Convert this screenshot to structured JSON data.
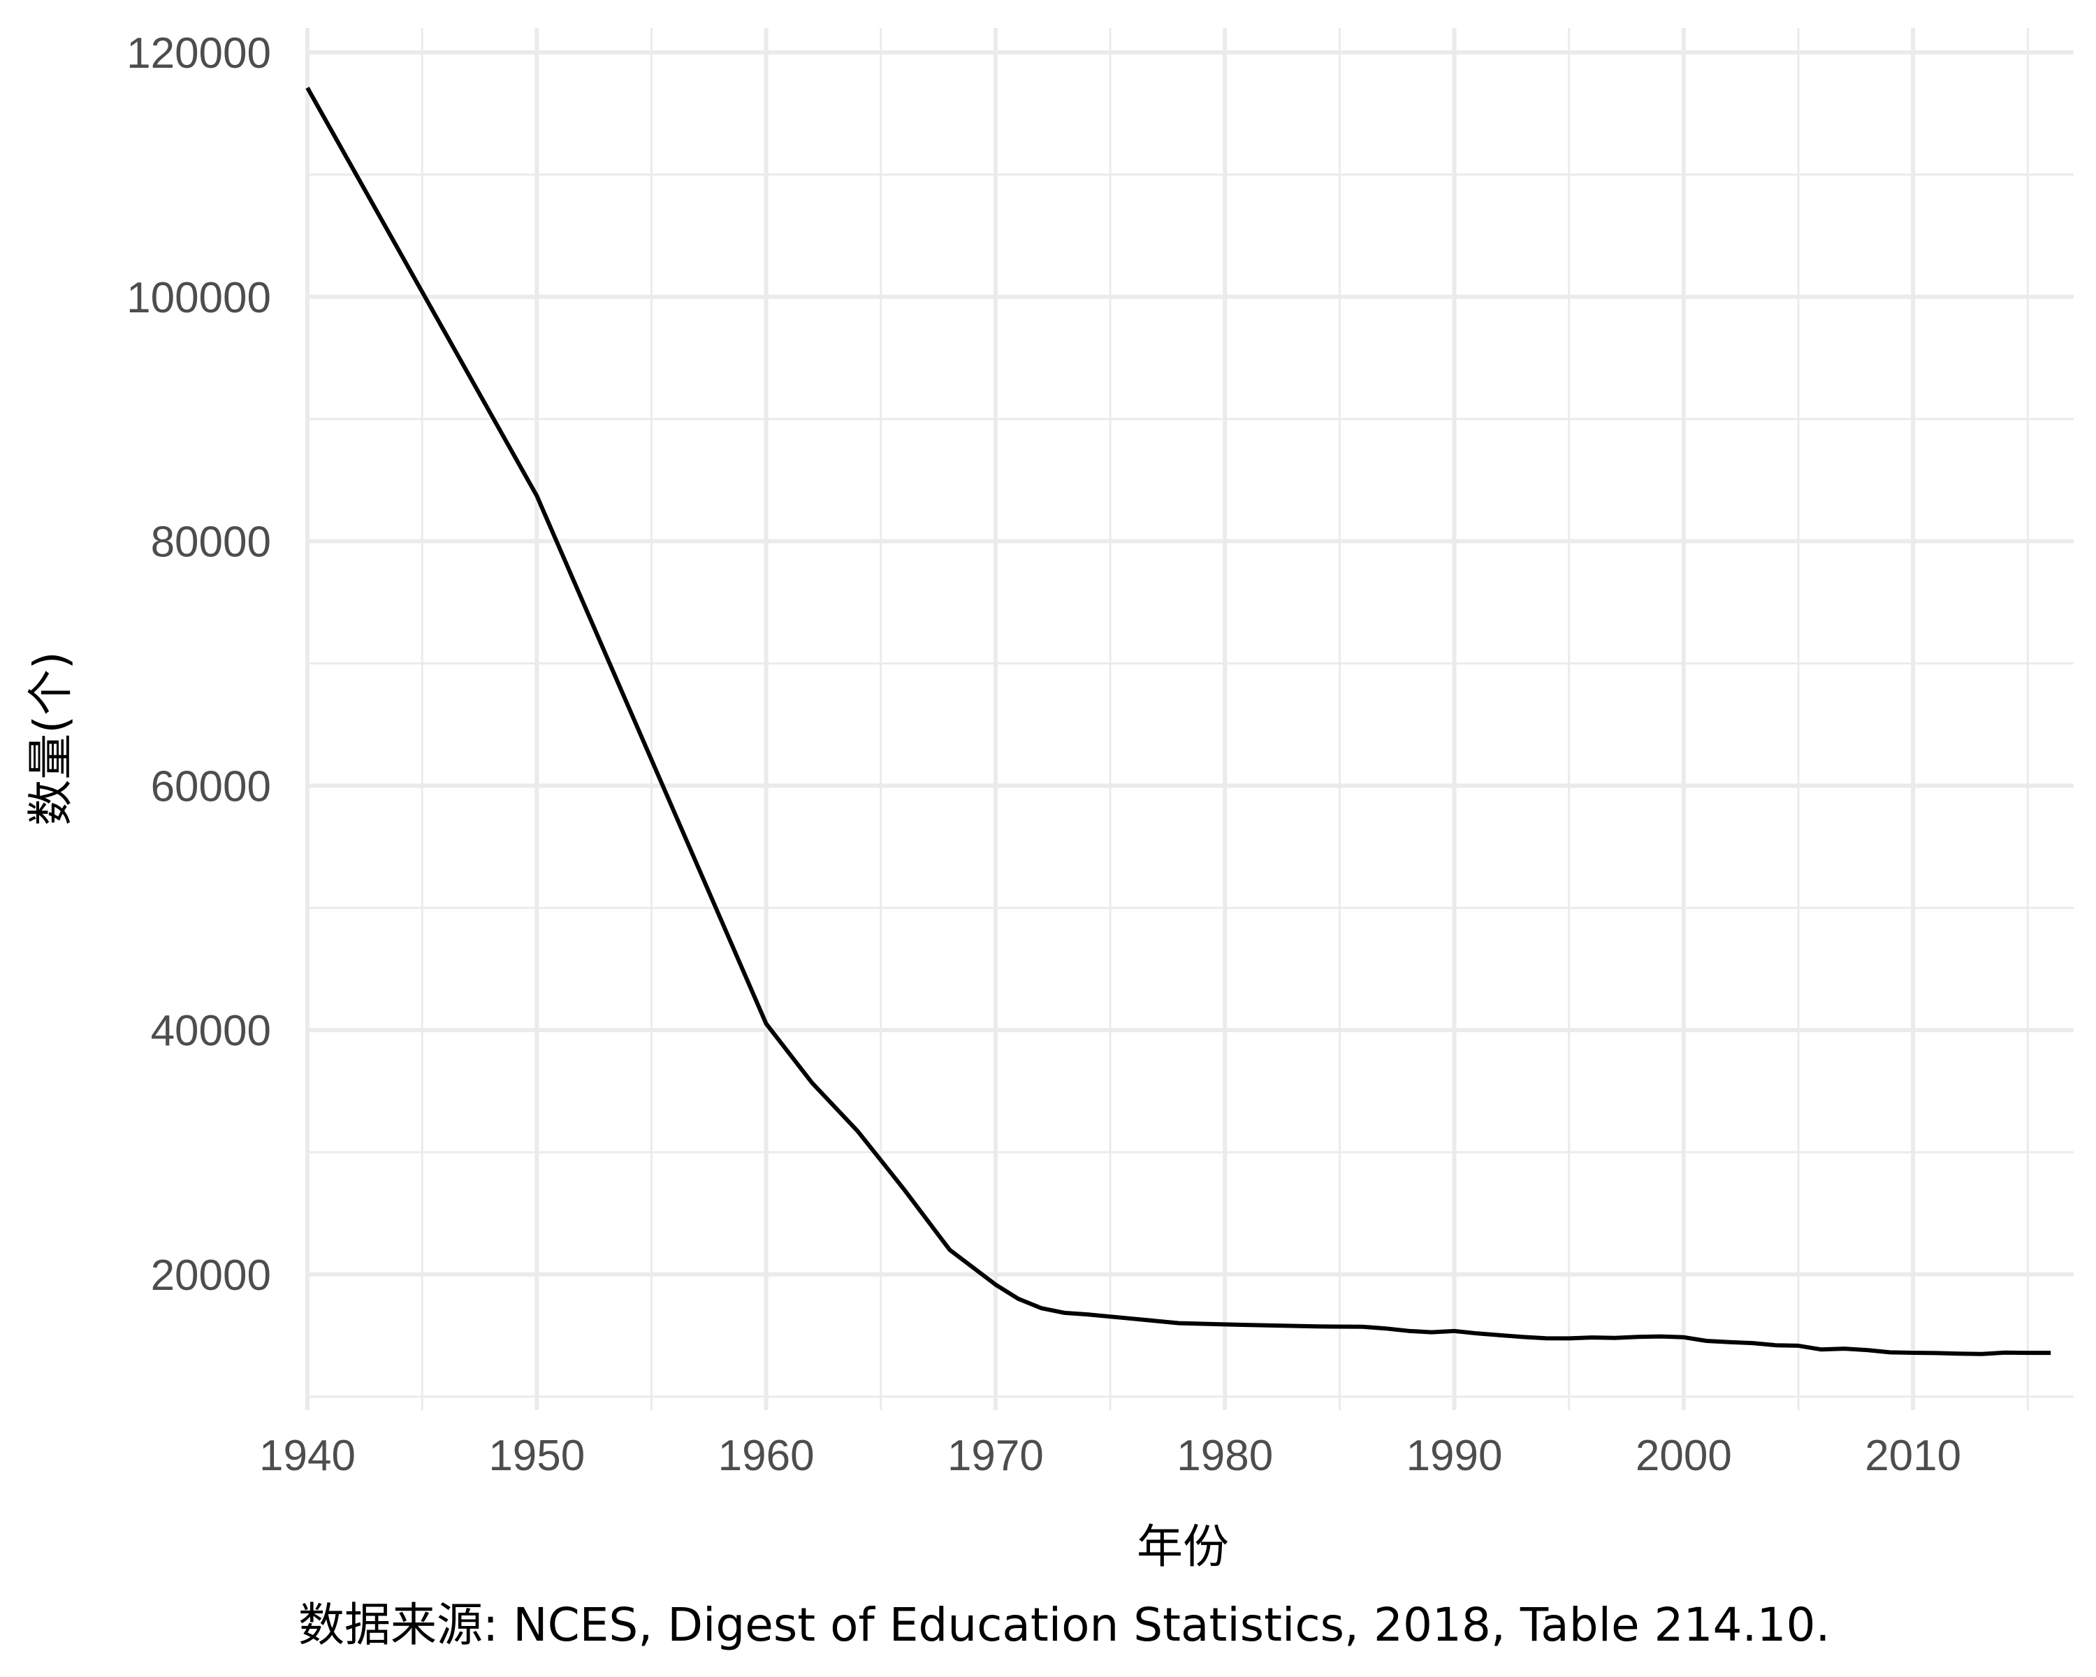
{
  "chart_data": {
    "type": "line",
    "title": "",
    "xlabel": "年份",
    "ylabel": "数量(个)",
    "caption": "数据来源: NCES, Digest of Education Statistics, 2018, Table 214.10.",
    "xlim": [
      1940,
      2017
    ],
    "ylim": [
      8900,
      122000
    ],
    "x_ticks": [
      1940,
      1950,
      1960,
      1970,
      1980,
      1990,
      2000,
      2010
    ],
    "y_ticks": [
      20000,
      40000,
      60000,
      80000,
      100000,
      120000
    ],
    "grid": true,
    "line_color": "#000000",
    "series": [
      {
        "x": [
          1940,
          1950,
          1960,
          1962,
          1964,
          1966,
          1968,
          1970,
          1971,
          1972,
          1973,
          1974,
          1976,
          1978,
          1980,
          1982,
          1984,
          1986,
          1987,
          1988,
          1989,
          1990,
          1991,
          1992,
          1993,
          1994,
          1995,
          1996,
          1997,
          1998,
          1999,
          2000,
          2001,
          2002,
          2003,
          2004,
          2005,
          2006,
          2007,
          2008,
          2009,
          2010,
          2011,
          2012,
          2013,
          2014,
          2015,
          2016
        ],
        "values": [
          117108,
          83718,
          40520,
          35676,
          31705,
          26983,
          22010,
          19169,
          17995,
          17238,
          16862,
          16730,
          16376,
          16014,
          15912,
          15824,
          15747,
          15713,
          15577,
          15376,
          15272,
          15367,
          15173,
          15025,
          14881,
          14772,
          14766,
          14841,
          14805,
          14891,
          14928,
          14859,
          14559,
          14465,
          14383,
          14205,
          14166,
          13856,
          13924,
          13809,
          13625,
          13588,
          13567,
          13515,
          13491,
          13601,
          13584,
          13584
        ]
      }
    ]
  }
}
